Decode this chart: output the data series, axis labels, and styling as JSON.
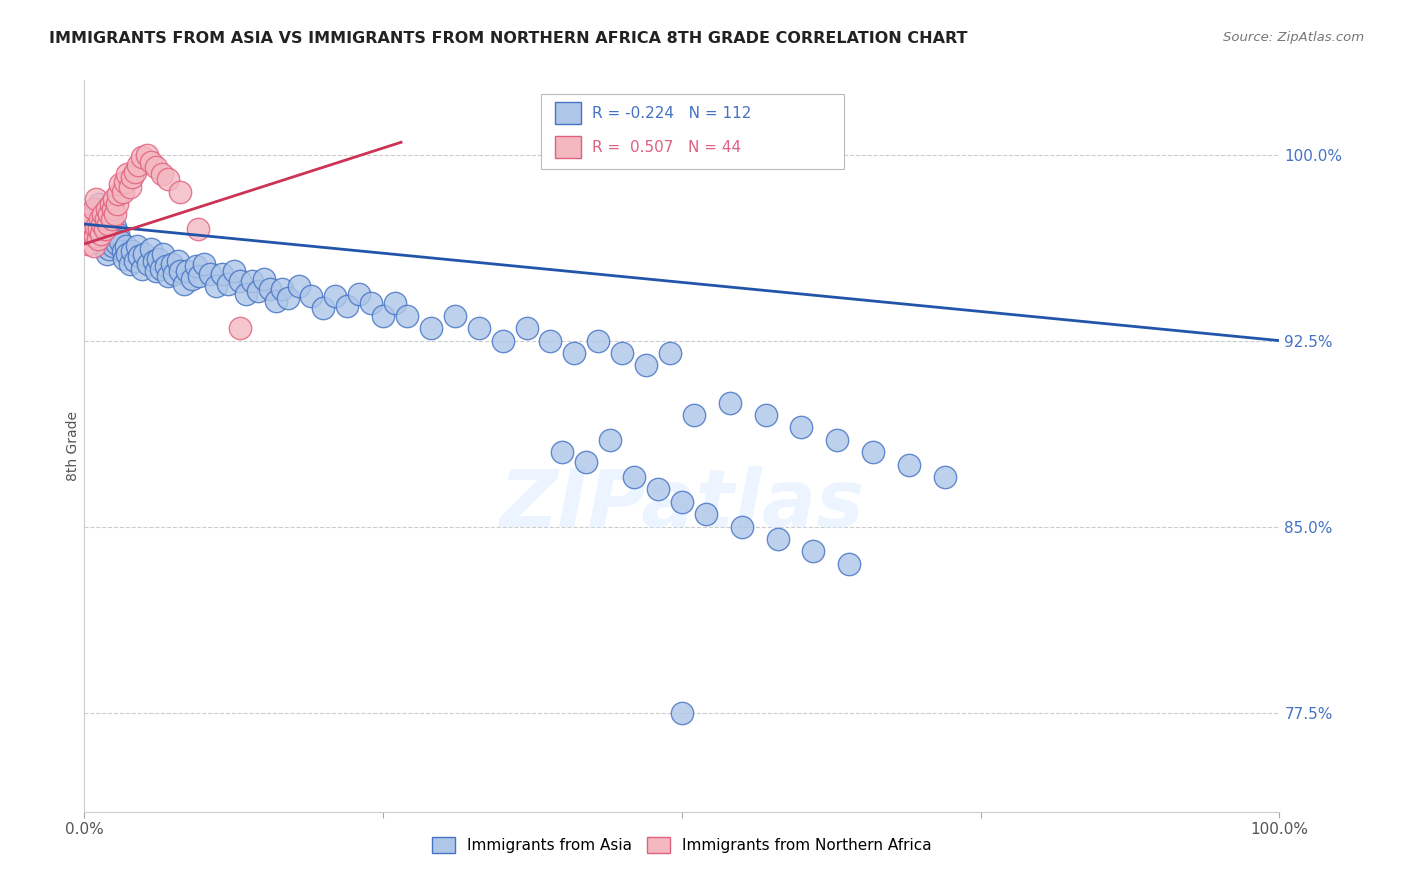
{
  "title": "IMMIGRANTS FROM ASIA VS IMMIGRANTS FROM NORTHERN AFRICA 8TH GRADE CORRELATION CHART",
  "source": "Source: ZipAtlas.com",
  "ylabel": "8th Grade",
  "yaxis_labels": [
    "100.0%",
    "92.5%",
    "85.0%",
    "77.5%"
  ],
  "yaxis_values": [
    1.0,
    0.925,
    0.85,
    0.775
  ],
  "xlim": [
    0.0,
    1.0
  ],
  "ylim": [
    0.735,
    1.03
  ],
  "legend_blue_r": "R = -0.224",
  "legend_blue_n": "N = 112",
  "legend_pink_r": "R =  0.507",
  "legend_pink_n": "N = 44",
  "blue_fill": "#aec6e8",
  "blue_edge": "#4472c4",
  "pink_fill": "#f4b8c1",
  "pink_edge": "#e06080",
  "blue_line_color": "#2255aa",
  "pink_line_color": "#cc3355",
  "watermark": "ZIPatlas",
  "blue_trend_x": [
    0.0,
    1.0
  ],
  "blue_trend_y": [
    0.972,
    0.925
  ],
  "pink_trend_x": [
    0.0,
    0.265
  ],
  "pink_trend_y": [
    0.964,
    1.005
  ],
  "blue_scatter_x": [
    0.005,
    0.007,
    0.009,
    0.01,
    0.01,
    0.012,
    0.012,
    0.013,
    0.014,
    0.015,
    0.015,
    0.016,
    0.017,
    0.018,
    0.018,
    0.019,
    0.02,
    0.02,
    0.021,
    0.022,
    0.023,
    0.024,
    0.025,
    0.026,
    0.027,
    0.028,
    0.03,
    0.032,
    0.033,
    0.035,
    0.036,
    0.038,
    0.04,
    0.042,
    0.044,
    0.046,
    0.048,
    0.05,
    0.053,
    0.056,
    0.058,
    0.06,
    0.062,
    0.064,
    0.066,
    0.068,
    0.07,
    0.073,
    0.075,
    0.078,
    0.08,
    0.083,
    0.086,
    0.09,
    0.093,
    0.096,
    0.1,
    0.105,
    0.11,
    0.115,
    0.12,
    0.125,
    0.13,
    0.135,
    0.14,
    0.145,
    0.15,
    0.155,
    0.16,
    0.165,
    0.17,
    0.18,
    0.19,
    0.2,
    0.21,
    0.22,
    0.23,
    0.24,
    0.25,
    0.26,
    0.27,
    0.29,
    0.31,
    0.33,
    0.35,
    0.37,
    0.39,
    0.41,
    0.43,
    0.45,
    0.47,
    0.49,
    0.51,
    0.54,
    0.57,
    0.6,
    0.63,
    0.66,
    0.69,
    0.72,
    0.4,
    0.42,
    0.44,
    0.46,
    0.48,
    0.5,
    0.52,
    0.55,
    0.58,
    0.61,
    0.64,
    0.5
  ],
  "blue_scatter_y": [
    0.972,
    0.975,
    0.97,
    0.978,
    0.969,
    0.974,
    0.98,
    0.967,
    0.971,
    0.976,
    0.963,
    0.968,
    0.972,
    0.965,
    0.978,
    0.96,
    0.969,
    0.974,
    0.962,
    0.966,
    0.97,
    0.963,
    0.967,
    0.971,
    0.964,
    0.968,
    0.965,
    0.961,
    0.958,
    0.963,
    0.96,
    0.956,
    0.961,
    0.957,
    0.963,
    0.959,
    0.954,
    0.96,
    0.956,
    0.962,
    0.957,
    0.953,
    0.958,
    0.954,
    0.96,
    0.955,
    0.951,
    0.956,
    0.952,
    0.957,
    0.953,
    0.948,
    0.953,
    0.95,
    0.955,
    0.951,
    0.956,
    0.952,
    0.947,
    0.952,
    0.948,
    0.953,
    0.949,
    0.944,
    0.949,
    0.945,
    0.95,
    0.946,
    0.941,
    0.946,
    0.942,
    0.947,
    0.943,
    0.938,
    0.943,
    0.939,
    0.944,
    0.94,
    0.935,
    0.94,
    0.935,
    0.93,
    0.935,
    0.93,
    0.925,
    0.93,
    0.925,
    0.92,
    0.925,
    0.92,
    0.915,
    0.92,
    0.895,
    0.9,
    0.895,
    0.89,
    0.885,
    0.88,
    0.875,
    0.87,
    0.88,
    0.876,
    0.885,
    0.87,
    0.865,
    0.86,
    0.855,
    0.85,
    0.845,
    0.84,
    0.835,
    0.775
  ],
  "pink_scatter_x": [
    0.003,
    0.005,
    0.006,
    0.007,
    0.008,
    0.008,
    0.009,
    0.01,
    0.01,
    0.011,
    0.012,
    0.013,
    0.014,
    0.015,
    0.016,
    0.017,
    0.018,
    0.019,
    0.02,
    0.021,
    0.022,
    0.023,
    0.024,
    0.025,
    0.026,
    0.027,
    0.028,
    0.03,
    0.032,
    0.034,
    0.036,
    0.038,
    0.04,
    0.042,
    0.045,
    0.048,
    0.052,
    0.056,
    0.06,
    0.065,
    0.07,
    0.08,
    0.095,
    0.13
  ],
  "pink_scatter_y": [
    0.964,
    0.968,
    0.972,
    0.975,
    0.963,
    0.978,
    0.967,
    0.971,
    0.982,
    0.966,
    0.97,
    0.974,
    0.968,
    0.972,
    0.976,
    0.97,
    0.974,
    0.978,
    0.972,
    0.976,
    0.98,
    0.974,
    0.978,
    0.982,
    0.976,
    0.98,
    0.984,
    0.988,
    0.985,
    0.989,
    0.992,
    0.987,
    0.991,
    0.993,
    0.996,
    0.999,
    1.0,
    0.997,
    0.995,
    0.992,
    0.99,
    0.985,
    0.97,
    0.93
  ]
}
